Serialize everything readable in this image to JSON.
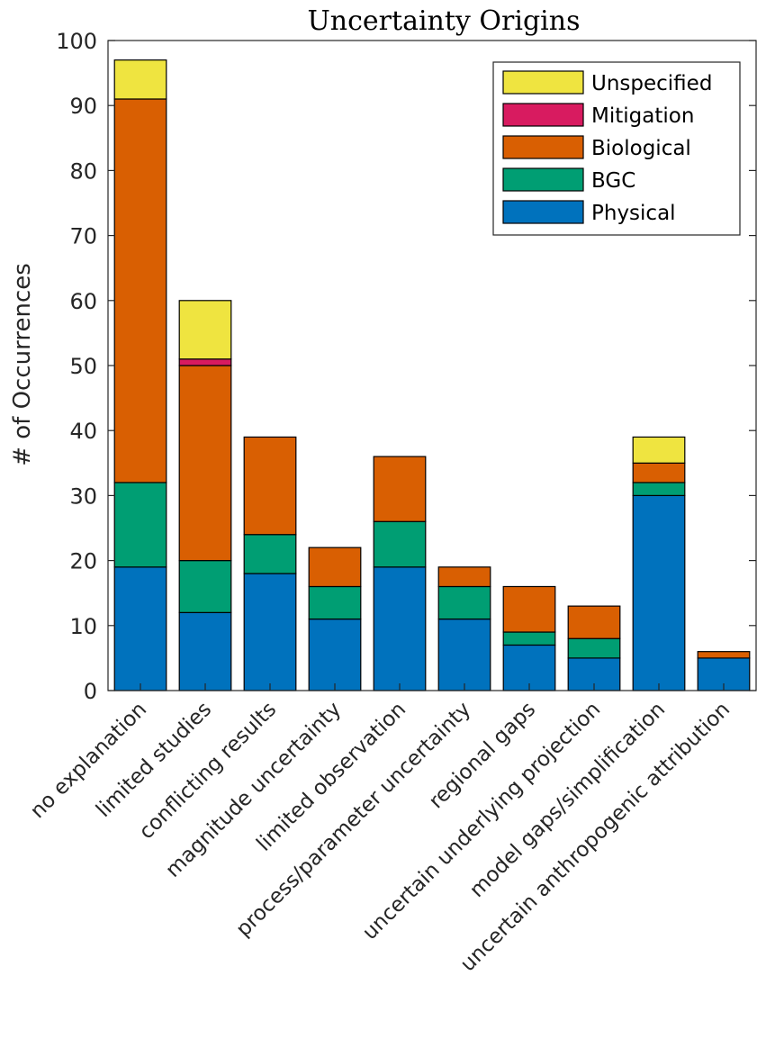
{
  "chart_data": {
    "type": "bar",
    "stacked": true,
    "title": "Uncertainty Origins",
    "xlabel": "",
    "ylabel": "# of Occurrences",
    "ylim": [
      0,
      100
    ],
    "yticks": [
      0,
      10,
      20,
      30,
      40,
      50,
      60,
      70,
      80,
      90,
      100
    ],
    "categories": [
      "no explanation",
      "limited studies",
      "conflicting results",
      "magnitude uncertainty",
      "limited observation",
      "process/parameter uncertainty",
      "regional gaps",
      "uncertain underlying projection",
      "model gaps/simplification",
      "uncertain anthropogenic attribution"
    ],
    "series": [
      {
        "name": "Physical",
        "color": "#0072BD",
        "values": [
          19,
          12,
          18,
          11,
          19,
          11,
          7,
          5,
          30,
          5
        ]
      },
      {
        "name": "BGC",
        "color": "#009E73",
        "values": [
          13,
          8,
          6,
          5,
          7,
          5,
          2,
          3,
          2,
          0
        ]
      },
      {
        "name": "Biological",
        "color": "#D95F02",
        "values": [
          59,
          30,
          15,
          6,
          10,
          3,
          7,
          5,
          3,
          1
        ]
      },
      {
        "name": "Mitigation",
        "color": "#D81B60",
        "values": [
          0,
          1,
          0,
          0,
          0,
          0,
          0,
          0,
          0,
          0
        ]
      },
      {
        "name": "Unspecified",
        "color": "#EFE440",
        "values": [
          6,
          9,
          0,
          0,
          0,
          0,
          0,
          0,
          4,
          0
        ]
      }
    ],
    "legend_order": [
      "Unspecified",
      "Mitigation",
      "Biological",
      "BGC",
      "Physical"
    ],
    "legend_position": "top-right",
    "grid": false
  }
}
